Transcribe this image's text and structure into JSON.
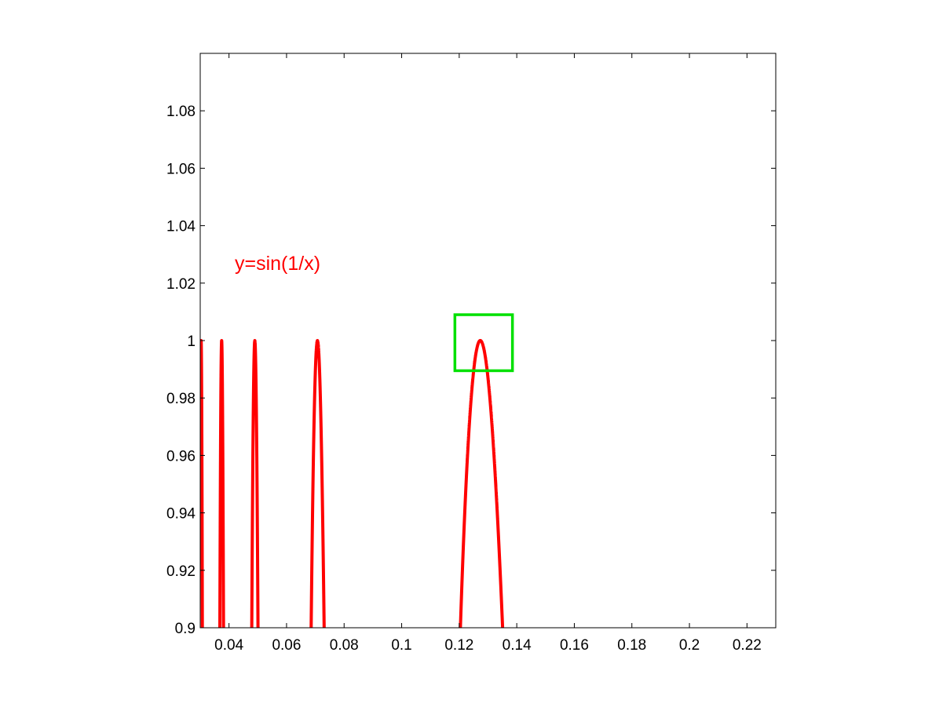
{
  "chart_data": {
    "type": "line",
    "title": "",
    "xlabel": "",
    "ylabel": "",
    "xlim": [
      0.03,
      0.23
    ],
    "ylim": [
      0.9,
      1.1
    ],
    "x_ticks": [
      0.04,
      0.06,
      0.08,
      0.1,
      0.12,
      0.14,
      0.16,
      0.18,
      0.2,
      0.22
    ],
    "x_tick_labels": [
      "0.04",
      "0.06",
      "0.08",
      "0.1",
      "0.12",
      "0.14",
      "0.16",
      "0.18",
      "0.2",
      "0.22"
    ],
    "y_ticks": [
      0.9,
      0.92,
      0.94,
      0.96,
      0.98,
      1.0,
      1.02,
      1.04,
      1.06,
      1.08
    ],
    "y_tick_labels": [
      "0.9",
      "0.92",
      "0.94",
      "0.96",
      "0.98",
      "1",
      "1.02",
      "1.04",
      "1.06",
      "1.08"
    ],
    "grid": false,
    "series": [
      {
        "function": "sin(1/x)",
        "color": "#ff0000",
        "x_range": [
          0.03,
          0.23
        ]
      }
    ],
    "annotations": [
      {
        "text": "y=sin(1/x)",
        "x": 0.042,
        "y": 1.027,
        "color": "#ff0000"
      }
    ],
    "highlight_box": {
      "x": [
        0.1185,
        0.1385
      ],
      "y": [
        0.9895,
        1.009
      ],
      "color": "#00e000"
    }
  }
}
